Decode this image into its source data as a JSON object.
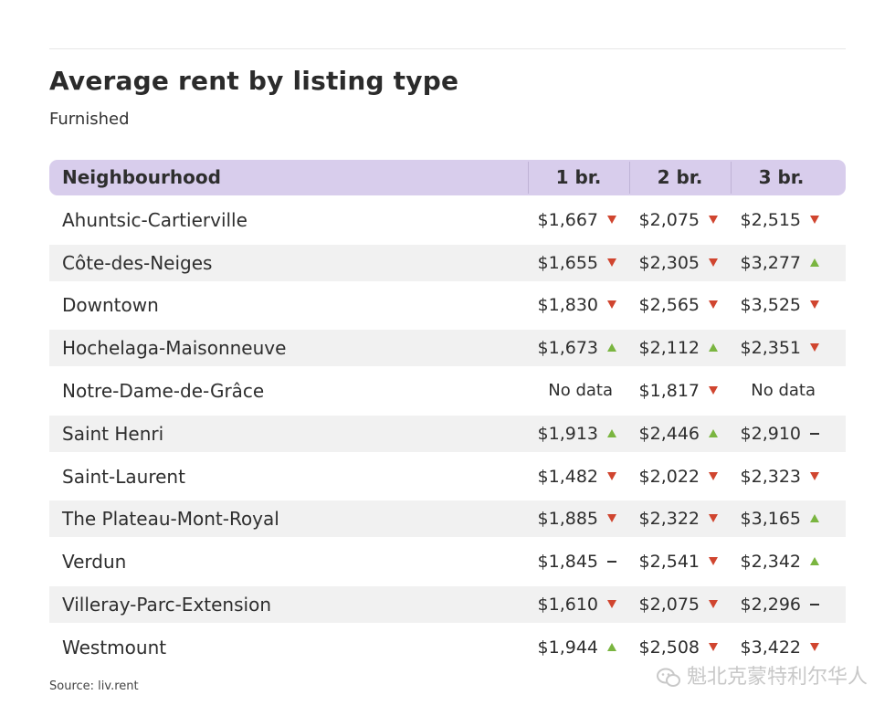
{
  "title": "Average rent by listing type",
  "subtitle": "Furnished",
  "source": "Source: liv.rent",
  "watermark": "魁北克蒙特利尔华人",
  "colors": {
    "header_bg": "#d8cdec",
    "down": "#d0452f",
    "up": "#7ab540",
    "flat": "#333333",
    "alt_row": "#f1f1f1"
  },
  "chart_data": {
    "type": "table",
    "title": "Average rent by listing type",
    "subtitle": "Furnished",
    "columns": [
      "Neighbourhood",
      "1 br.",
      "2 br.",
      "3 br."
    ],
    "rows": [
      {
        "name": "Ahuntsic-Cartierville",
        "cells": [
          {
            "value": "$1,667",
            "trend": "down"
          },
          {
            "value": "$2,075",
            "trend": "down"
          },
          {
            "value": "$2,515",
            "trend": "down"
          }
        ]
      },
      {
        "name": "Côte-des-Neiges",
        "cells": [
          {
            "value": "$1,655",
            "trend": "down"
          },
          {
            "value": "$2,305",
            "trend": "down"
          },
          {
            "value": "$3,277",
            "trend": "up"
          }
        ]
      },
      {
        "name": "Downtown",
        "cells": [
          {
            "value": "$1,830",
            "trend": "down"
          },
          {
            "value": "$2,565",
            "trend": "down"
          },
          {
            "value": "$3,525",
            "trend": "down"
          }
        ]
      },
      {
        "name": "Hochelaga-Maisonneuve",
        "cells": [
          {
            "value": "$1,673",
            "trend": "up"
          },
          {
            "value": "$2,112",
            "trend": "up"
          },
          {
            "value": "$2,351",
            "trend": "down"
          }
        ]
      },
      {
        "name": "Notre-Dame-de-Grâce",
        "cells": [
          {
            "value": "No data",
            "trend": "none"
          },
          {
            "value": "$1,817",
            "trend": "down"
          },
          {
            "value": "No data",
            "trend": "none"
          }
        ]
      },
      {
        "name": "Saint Henri",
        "cells": [
          {
            "value": "$1,913",
            "trend": "up"
          },
          {
            "value": "$2,446",
            "trend": "up"
          },
          {
            "value": "$2,910",
            "trend": "flat"
          }
        ]
      },
      {
        "name": "Saint-Laurent",
        "cells": [
          {
            "value": "$1,482",
            "trend": "down"
          },
          {
            "value": "$2,022",
            "trend": "down"
          },
          {
            "value": "$2,323",
            "trend": "down"
          }
        ]
      },
      {
        "name": "The Plateau-Mont-Royal",
        "cells": [
          {
            "value": "$1,885",
            "trend": "down"
          },
          {
            "value": "$2,322",
            "trend": "down"
          },
          {
            "value": "$3,165",
            "trend": "up"
          }
        ]
      },
      {
        "name": "Verdun",
        "cells": [
          {
            "value": "$1,845",
            "trend": "flat"
          },
          {
            "value": "$2,541",
            "trend": "down"
          },
          {
            "value": "$2,342",
            "trend": "up"
          }
        ]
      },
      {
        "name": "Villeray-Parc-Extension",
        "cells": [
          {
            "value": "$1,610",
            "trend": "down"
          },
          {
            "value": "$2,075",
            "trend": "down"
          },
          {
            "value": "$2,296",
            "trend": "flat"
          }
        ]
      },
      {
        "name": "Westmount",
        "cells": [
          {
            "value": "$1,944",
            "trend": "up"
          },
          {
            "value": "$2,508",
            "trend": "down"
          },
          {
            "value": "$3,422",
            "trend": "down"
          }
        ]
      }
    ]
  }
}
